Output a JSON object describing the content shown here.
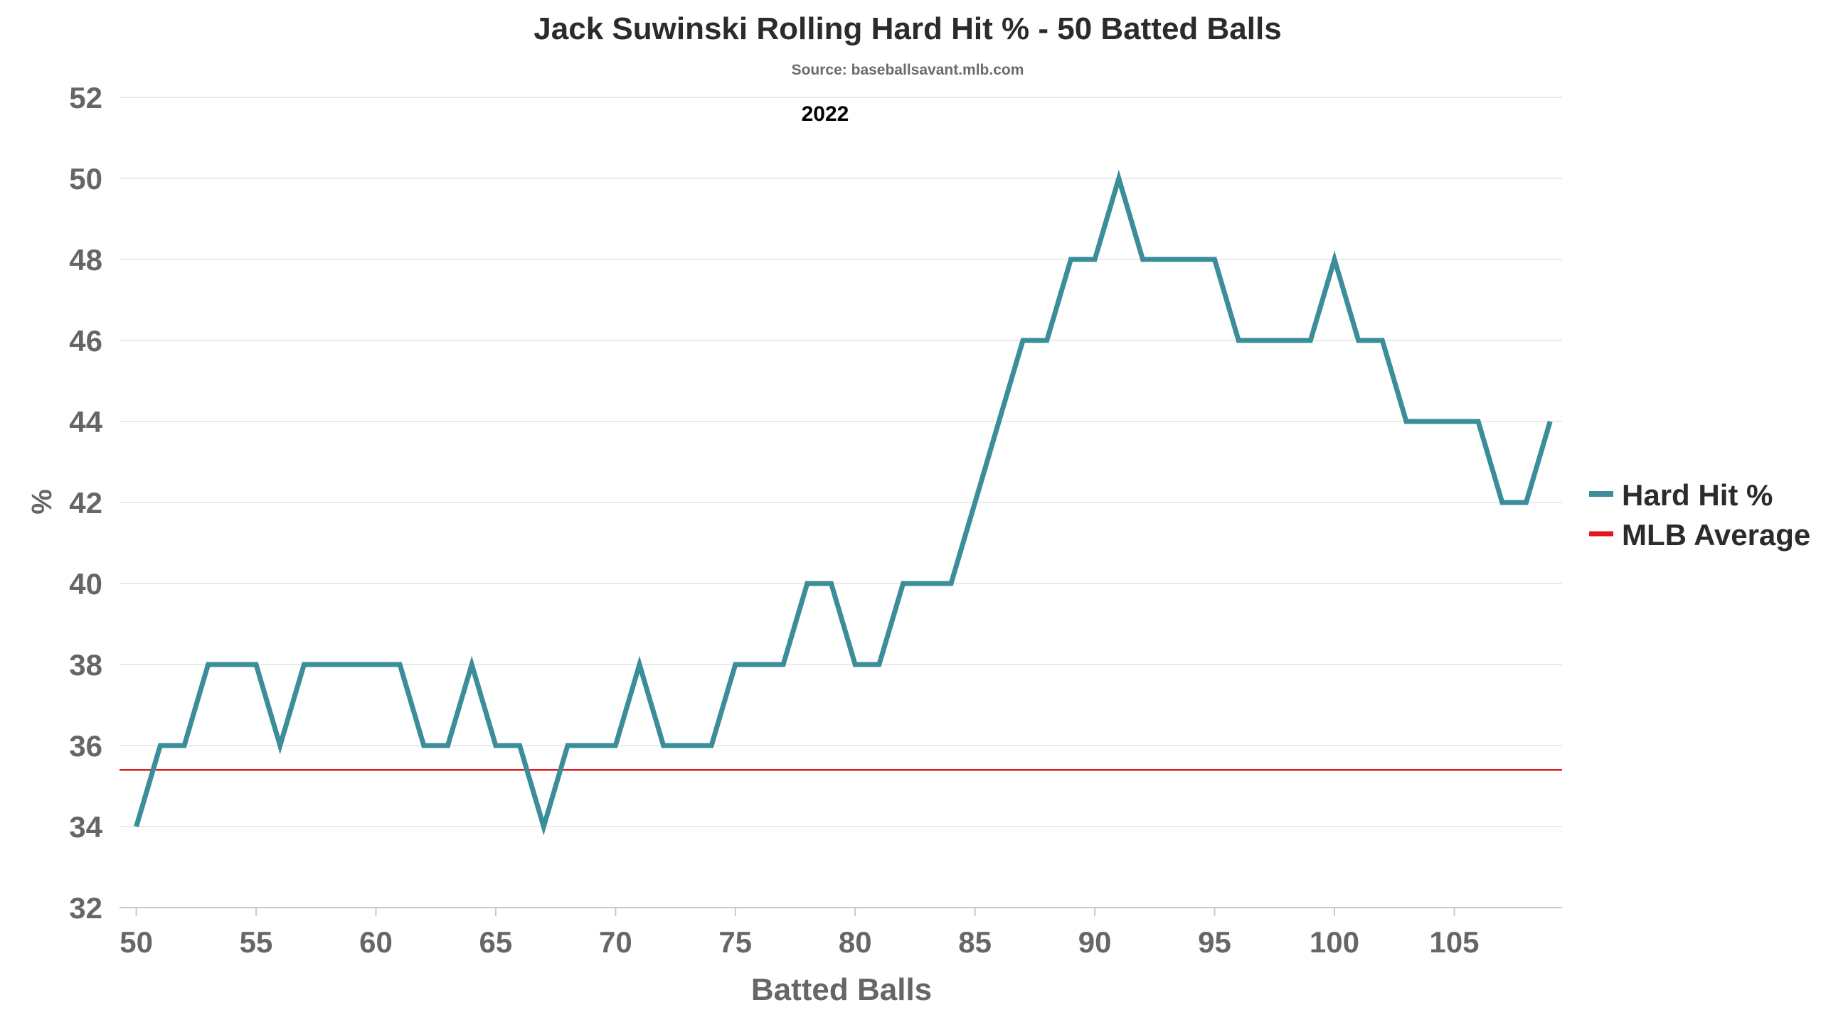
{
  "chart_data": {
    "type": "line",
    "title": "Jack Suwinski Rolling Hard Hit % - 50 Batted Balls",
    "subtitle": "Source: baseballsavant.mlb.com",
    "annotation": "2022",
    "xlabel": "Batted Balls",
    "ylabel": "%",
    "xlim": [
      49.3,
      109.5
    ],
    "ylim": [
      32,
      52
    ],
    "x_ticks": [
      50,
      55,
      60,
      65,
      70,
      75,
      80,
      85,
      90,
      95,
      100,
      105
    ],
    "y_ticks": [
      32,
      34,
      36,
      38,
      40,
      42,
      44,
      46,
      48,
      50,
      52
    ],
    "grid": true,
    "legend_position": "right",
    "series": [
      {
        "name": "Hard Hit %",
        "color": "#3b8d99",
        "x": [
          50,
          51,
          52,
          53,
          54,
          55,
          56,
          57,
          58,
          59,
          60,
          61,
          62,
          63,
          64,
          65,
          66,
          67,
          68,
          69,
          70,
          71,
          72,
          73,
          74,
          75,
          76,
          77,
          78,
          79,
          80,
          81,
          82,
          83,
          84,
          85,
          86,
          87,
          88,
          89,
          90,
          91,
          92,
          93,
          94,
          95,
          96,
          97,
          98,
          99,
          100,
          101,
          102,
          103,
          104,
          105,
          106,
          107,
          108,
          109
        ],
        "y": [
          34,
          36,
          36,
          38,
          38,
          38,
          36,
          38,
          38,
          38,
          38,
          38,
          36,
          36,
          38,
          36,
          36,
          34,
          36,
          36,
          36,
          38,
          36,
          36,
          36,
          38,
          38,
          38,
          40,
          40,
          38,
          38,
          40,
          40,
          40,
          42,
          44,
          46,
          46,
          48,
          48,
          50,
          48,
          48,
          48,
          48,
          46,
          46,
          46,
          46,
          48,
          46,
          46,
          44,
          44,
          44,
          44,
          42,
          42,
          44
        ]
      },
      {
        "name": "MLB Average",
        "color": "#e0191f",
        "y": 35.4
      }
    ]
  }
}
